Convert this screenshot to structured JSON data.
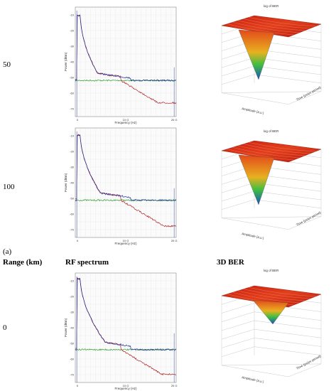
{
  "rows": [
    {
      "label": "50"
    },
    {
      "label": "100"
    },
    {
      "label": "0"
    }
  ],
  "part_label": "(a)",
  "headers": {
    "range": "Range (km)",
    "rf": "RF spectrum",
    "ber": "3D BER"
  },
  "rf_plot": {
    "xlabel": "Frequency (Hz)",
    "ylabel": "Power (dBm)",
    "xticks": [
      "0",
      "10 G",
      "20 G"
    ],
    "yticks": [
      "-10",
      "-20",
      "-30",
      "-40",
      "-50",
      "-60",
      "-70"
    ],
    "series_colors": {
      "blue": "#1f2f9c",
      "green": "#2a9a2a",
      "red": "#b02020"
    }
  },
  "ber_plot": {
    "title": "log of BER",
    "xlabel": "Amplitude (a.u.)",
    "ylabel": "Time (ps/ps period)"
  }
}
